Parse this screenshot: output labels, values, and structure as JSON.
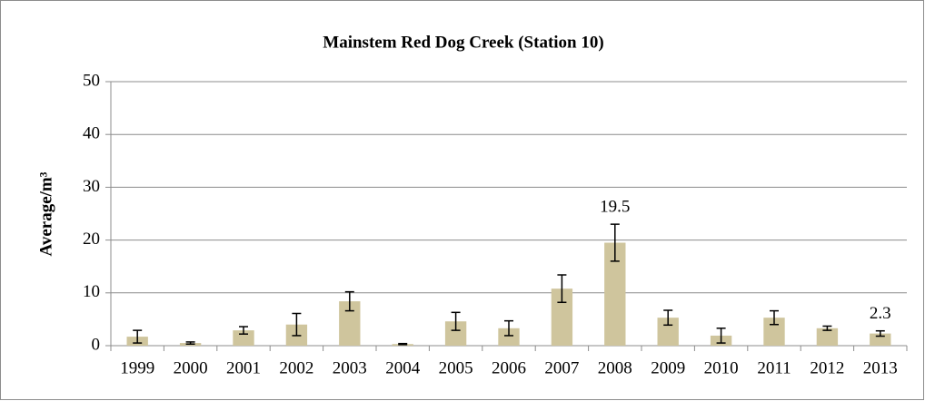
{
  "chart_data": {
    "type": "bar",
    "title": "Mainstem Red Dog Creek (Station 10)",
    "y_label": "Average/m³",
    "categories": [
      "1999",
      "2000",
      "2001",
      "2002",
      "2003",
      "2004",
      "2005",
      "2006",
      "2007",
      "2008",
      "2009",
      "2010",
      "2011",
      "2012",
      "2013"
    ],
    "values": [
      1.7,
      0.5,
      2.9,
      4.0,
      8.4,
      0.3,
      4.6,
      3.3,
      10.8,
      19.5,
      5.3,
      1.9,
      5.3,
      3.3,
      2.3
    ],
    "errors": [
      1.2,
      0.2,
      0.7,
      2.1,
      1.8,
      0.1,
      1.7,
      1.4,
      2.6,
      3.5,
      1.4,
      1.4,
      1.3,
      0.4,
      0.5
    ],
    "value_labels": [
      null,
      null,
      null,
      null,
      null,
      null,
      null,
      null,
      null,
      "19.5",
      null,
      null,
      null,
      null,
      "2.3"
    ],
    "color": "#cfc59d",
    "ylim": [
      0,
      50
    ],
    "yticks": [
      0,
      10,
      20,
      30,
      40,
      50
    ],
    "grid": true
  }
}
